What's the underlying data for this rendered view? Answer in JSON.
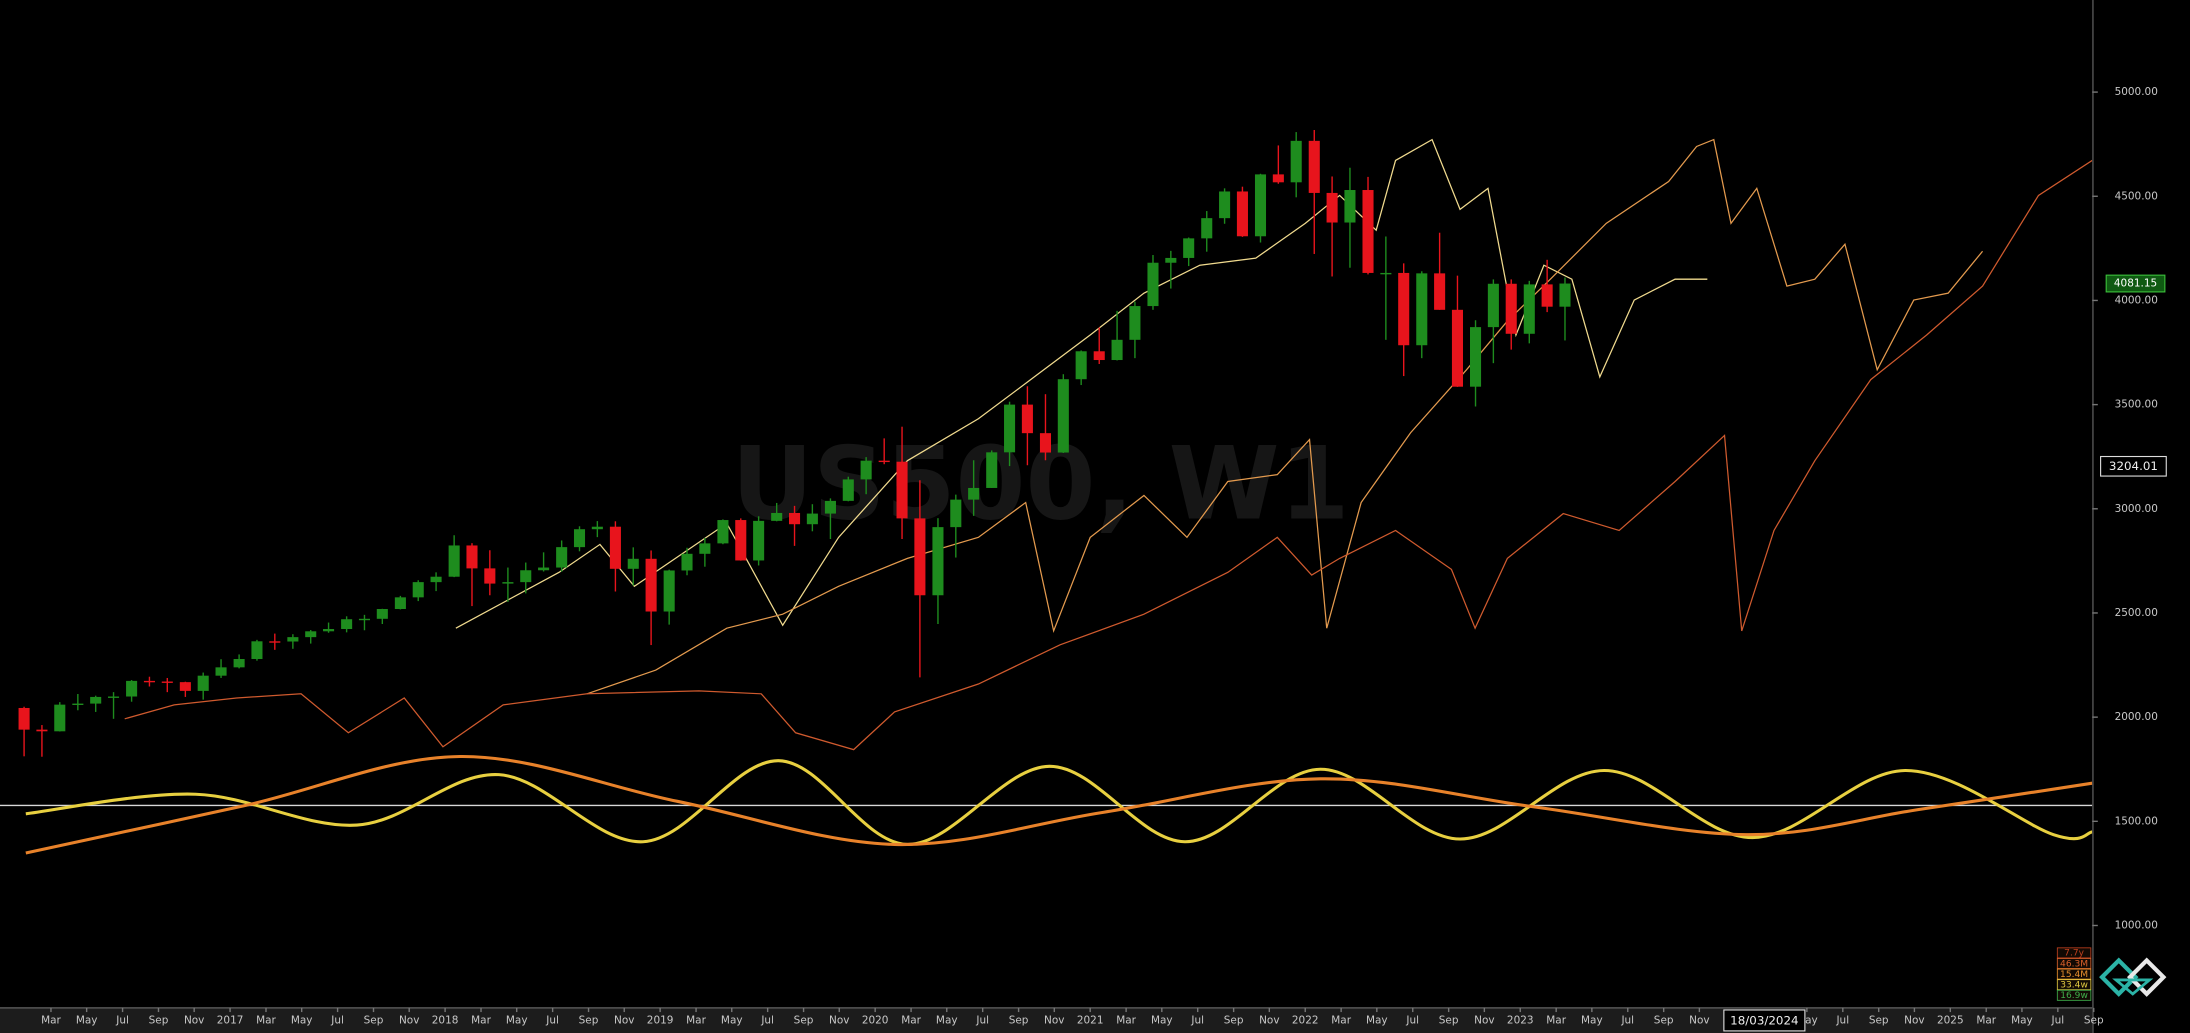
{
  "chart_data": {
    "type": "candlestick",
    "title": "US500, W1",
    "up_color": "#1e8c1e",
    "down_color": "#e8141c",
    "x": [
      2016.042,
      2016.125,
      2016.208,
      2016.292,
      2016.375,
      2016.458,
      2016.542,
      2016.625,
      2016.708,
      2016.792,
      2016.875,
      2016.958,
      2017.042,
      2017.125,
      2017.208,
      2017.292,
      2017.375,
      2017.458,
      2017.542,
      2017.625,
      2017.708,
      2017.792,
      2017.875,
      2017.958,
      2018.042,
      2018.125,
      2018.208,
      2018.292,
      2018.375,
      2018.458,
      2018.542,
      2018.625,
      2018.708,
      2018.792,
      2018.875,
      2018.958,
      2019.042,
      2019.125,
      2019.208,
      2019.292,
      2019.375,
      2019.458,
      2019.542,
      2019.625,
      2019.708,
      2019.792,
      2019.875,
      2019.958,
      2020.042,
      2020.125,
      2020.208,
      2020.292,
      2020.375,
      2020.458,
      2020.542,
      2020.625,
      2020.708,
      2020.792,
      2020.875,
      2020.958,
      2021.042,
      2021.125,
      2021.208,
      2021.292,
      2021.375,
      2021.458,
      2021.542,
      2021.625,
      2021.708,
      2021.792,
      2021.875,
      2021.958,
      2022.042,
      2022.125,
      2022.208,
      2022.292,
      2022.375,
      2022.458,
      2022.542,
      2022.625,
      2022.708,
      2022.792,
      2022.875,
      2022.958,
      2023.042,
      2023.125,
      2023.208
    ],
    "open": [
      2044,
      1940,
      1932,
      2060,
      2065,
      2097,
      2099,
      2174,
      2171,
      2168,
      2126,
      2199,
      2239,
      2279,
      2364,
      2363,
      2384,
      2412,
      2423,
      2470,
      2472,
      2519,
      2575,
      2648,
      2674,
      2824,
      2714,
      2641,
      2648,
      2705,
      2718,
      2816,
      2902,
      2914,
      2712,
      2760,
      2507,
      2704,
      2784,
      2834,
      2946,
      2752,
      2942,
      2980,
      2926,
      2977,
      3038,
      3141,
      3231,
      3226,
      2954,
      2585,
      2912,
      3044,
      3100,
      3271,
      3500,
      3363,
      3270,
      3622,
      3756,
      3714,
      3811,
      3973,
      4181,
      4204,
      4298,
      4395,
      4523,
      4308,
      4605,
      4567,
      4766,
      4516,
      4374,
      4530,
      4132,
      4132,
      3785,
      4130,
      3955,
      3586,
      3872,
      4080,
      3840,
      4077,
      3970
    ],
    "high": [
      2050,
      1962,
      2072,
      2111,
      2103,
      2120,
      2178,
      2194,
      2188,
      2170,
      2214,
      2278,
      2301,
      2371,
      2401,
      2398,
      2418,
      2454,
      2484,
      2491,
      2520,
      2582,
      2657,
      2695,
      2873,
      2835,
      2801,
      2718,
      2742,
      2791,
      2848,
      2916,
      2941,
      2940,
      2815,
      2800,
      2708,
      2813,
      2860,
      2949,
      2954,
      2964,
      3028,
      3014,
      3022,
      3050,
      3154,
      3248,
      3338,
      3394,
      3137,
      2955,
      3068,
      3233,
      3280,
      3514,
      3588,
      3550,
      3646,
      3760,
      3870,
      3950,
      3994,
      4218,
      4238,
      4302,
      4429,
      4538,
      4546,
      4608,
      4744,
      4808,
      4818,
      4595,
      4637,
      4593,
      4307,
      4178,
      4140,
      4325,
      4119,
      3905,
      4101,
      4101,
      4094,
      4195,
      4110
    ],
    "low": [
      1812,
      1810,
      1931,
      2033,
      2025,
      1992,
      2074,
      2147,
      2120,
      2097,
      2084,
      2188,
      2234,
      2271,
      2323,
      2328,
      2353,
      2405,
      2407,
      2417,
      2447,
      2517,
      2557,
      2605,
      2672,
      2533,
      2585,
      2553,
      2594,
      2699,
      2698,
      2796,
      2864,
      2603,
      2631,
      2346,
      2444,
      2681,
      2722,
      2830,
      2751,
      2728,
      2940,
      2822,
      2892,
      2855,
      3036,
      3070,
      3214,
      2855,
      2191,
      2447,
      2766,
      2966,
      3100,
      3205,
      3209,
      3233,
      3268,
      3594,
      3695,
      3712,
      3723,
      3955,
      4057,
      4165,
      4234,
      4368,
      4305,
      4278,
      4560,
      4495,
      4223,
      4115,
      4157,
      4125,
      3811,
      3637,
      3723,
      3955,
      3585,
      3491,
      3699,
      3764,
      3794,
      3944,
      3808
    ],
    "close": [
      1940,
      1932,
      2060,
      2065,
      2097,
      2099,
      2174,
      2171,
      2168,
      2126,
      2199,
      2239,
      2279,
      2364,
      2363,
      2384,
      2412,
      2423,
      2470,
      2472,
      2519,
      2575,
      2648,
      2674,
      2824,
      2714,
      2641,
      2648,
      2705,
      2718,
      2816,
      2902,
      2914,
      2712,
      2760,
      2507,
      2704,
      2784,
      2834,
      2946,
      2752,
      2942,
      2980,
      2926,
      2977,
      3038,
      3141,
      3231,
      3226,
      2954,
      2585,
      2912,
      3044,
      3100,
      3271,
      3500,
      3363,
      3270,
      3622,
      3756,
      3714,
      3811,
      3973,
      4181,
      4204,
      4298,
      4395,
      4523,
      4308,
      4605,
      4567,
      4766,
      4516,
      4374,
      4530,
      4132,
      4132,
      3785,
      4130,
      3955,
      3586,
      3872,
      4080,
      3840,
      4077,
      3970,
      4081.15
    ],
    "overlays": [
      {
        "color": "#f0da8e",
        "x": [
          2018.05,
          2018.53,
          2018.72,
          2018.88,
          2019.31,
          2019.57,
          2019.83,
          2020.15,
          2020.48,
          2020.74,
          2021.0,
          2021.25,
          2021.51,
          2021.77,
          2022.0,
          2022.16,
          2022.33,
          2022.42,
          2022.59,
          2022.72,
          2022.85,
          2022.98,
          2023.11,
          2023.24,
          2023.37,
          2023.53,
          2023.72,
          2023.87
        ],
        "values": [
          2427,
          2695,
          2829,
          2628,
          2930,
          2441,
          2863,
          3231,
          3432,
          3633,
          3834,
          4035,
          4169,
          4203,
          4370,
          4504,
          4337,
          4672,
          4772,
          4437,
          4538,
          3834,
          4169,
          4102,
          3633,
          4002,
          4102,
          4102
        ]
      },
      {
        "color": "#e39a4e",
        "x": [
          2018.66,
          2018.98,
          2019.31,
          2019.57,
          2019.83,
          2020.15,
          2020.48,
          2020.7,
          2020.83,
          2021.0,
          2021.25,
          2021.45,
          2021.64,
          2021.87,
          2022.02,
          2022.1,
          2022.26,
          2022.49,
          2022.75,
          2022.94,
          2023.14,
          2023.4,
          2023.69,
          2023.82,
          2023.9,
          2023.98,
          2024.1,
          2024.24,
          2024.37,
          2024.51,
          2024.66,
          2024.83,
          2024.99,
          2025.15
        ],
        "values": [
          2112,
          2226,
          2427,
          2494,
          2628,
          2762,
          2863,
          3030,
          2414,
          2863,
          3064,
          2863,
          3131,
          3164,
          3332,
          2427,
          3030,
          3365,
          3667,
          3901,
          4102,
          4370,
          4571,
          4739,
          4772,
          4370,
          4538,
          4069,
          4102,
          4270,
          3667,
          4002,
          4035,
          4236
        ]
      },
      {
        "color": "#cf5a2e",
        "x": [
          2016.51,
          2016.74,
          2017.03,
          2017.33,
          2017.55,
          2017.81,
          2017.99,
          2018.27,
          2018.66,
          2019.18,
          2019.47,
          2019.63,
          2019.9,
          2020.09,
          2020.48,
          2020.86,
          2021.25,
          2021.64,
          2021.87,
          2022.03,
          2022.16,
          2022.42,
          2022.68,
          2022.79,
          2022.94,
          2023.2,
          2023.46,
          2023.72,
          2023.95,
          2024.03,
          2024.18,
          2024.37,
          2024.63,
          2024.89,
          2025.15,
          2025.41,
          2025.66
        ],
        "values": [
          1992,
          2059,
          2092,
          2112,
          1925,
          2092,
          1858,
          2059,
          2112,
          2126,
          2112,
          1925,
          1844,
          2025,
          2159,
          2347,
          2494,
          2695,
          2863,
          2682,
          2762,
          2896,
          2709,
          2427,
          2762,
          2977,
          2896,
          3131,
          3352,
          2414,
          2896,
          3231,
          3620,
          3834,
          4069,
          4504,
          4672
        ]
      }
    ],
    "cycles": [
      {
        "color": "#e8d040",
        "x": [
          2016.05,
          2016.84,
          2017.59,
          2018.25,
          2018.92,
          2019.55,
          2020.15,
          2020.81,
          2021.44,
          2022.07,
          2022.72,
          2023.39,
          2024.08,
          2024.79,
          2025.48,
          2025.66
        ],
        "values": [
          1536,
          1630,
          1482,
          1724,
          1402,
          1791,
          1389,
          1764,
          1402,
          1750,
          1415,
          1744,
          1422,
          1744,
          1436,
          1449
        ]
      },
      {
        "color": "#e8822a",
        "x": [
          2016.05,
          2017.07,
          2018.07,
          2019.08,
          2020.09,
          2021.06,
          2022.07,
          2023.06,
          2024.05,
          2024.85,
          2025.66
        ],
        "values": [
          1348,
          1576,
          1811,
          1596,
          1389,
          1543,
          1704,
          1570,
          1436,
          1556,
          1683
        ]
      }
    ],
    "hline": {
      "value": 1576,
      "color": "#d8d8d8"
    },
    "crosshair": {
      "x_label": "18/03/2024",
      "y": 3204.01
    },
    "cycle_labels": [
      {
        "label": "7.7y",
        "color": "#c0401e"
      },
      {
        "label": "46.3M",
        "color": "#d8602a"
      },
      {
        "label": "15.4M",
        "color": "#e8902e"
      },
      {
        "label": "33.4w",
        "color": "#e0c840"
      },
      {
        "label": "16.9w",
        "color": "#3fae4a"
      }
    ],
    "xlim": [
      2015.93,
      2025.66
    ],
    "ylim": [
      618,
      5442
    ],
    "xticks": [
      {
        "value": 2016.167,
        "label": "Mar"
      },
      {
        "value": 2016.333,
        "label": "May"
      },
      {
        "value": 2016.5,
        "label": "Jul"
      },
      {
        "value": 2016.667,
        "label": "Sep"
      },
      {
        "value": 2016.833,
        "label": "Nov"
      },
      2017,
      {
        "value": 2017.167,
        "label": "Mar"
      },
      {
        "value": 2017.333,
        "label": "May"
      },
      {
        "value": 2017.5,
        "label": "Jul"
      },
      {
        "value": 2017.667,
        "label": "Sep"
      },
      {
        "value": 2017.833,
        "label": "Nov"
      },
      2018,
      {
        "value": 2018.167,
        "label": "Mar"
      },
      {
        "value": 2018.333,
        "label": "May"
      },
      {
        "value": 2018.5,
        "label": "Jul"
      },
      {
        "value": 2018.667,
        "label": "Sep"
      },
      {
        "value": 2018.833,
        "label": "Nov"
      },
      2019,
      {
        "value": 2019.167,
        "label": "Mar"
      },
      {
        "value": 2019.333,
        "label": "May"
      },
      {
        "value": 2019.5,
        "label": "Jul"
      },
      {
        "value": 2019.667,
        "label": "Sep"
      },
      {
        "value": 2019.833,
        "label": "Nov"
      },
      2020,
      {
        "value": 2020.167,
        "label": "Mar"
      },
      {
        "value": 2020.333,
        "label": "May"
      },
      {
        "value": 2020.5,
        "label": "Jul"
      },
      {
        "value": 2020.667,
        "label": "Sep"
      },
      {
        "value": 2020.833,
        "label": "Nov"
      },
      2021,
      {
        "value": 2021.167,
        "label": "Mar"
      },
      {
        "value": 2021.333,
        "label": "May"
      },
      {
        "value": 2021.5,
        "label": "Jul"
      },
      {
        "value": 2021.667,
        "label": "Sep"
      },
      {
        "value": 2021.833,
        "label": "Nov"
      },
      2022,
      {
        "value": 2022.167,
        "label": "Mar"
      },
      {
        "value": 2022.333,
        "label": "May"
      },
      {
        "value": 2022.5,
        "label": "Jul"
      },
      {
        "value": 2022.667,
        "label": "Sep"
      },
      {
        "value": 2022.833,
        "label": "Nov"
      },
      2023,
      {
        "value": 2023.167,
        "label": "Mar"
      },
      {
        "value": 2023.333,
        "label": "May"
      },
      {
        "value": 2023.5,
        "label": "Jul"
      },
      {
        "value": 2023.667,
        "label": "Sep"
      },
      {
        "value": 2023.833,
        "label": "Nov"
      },
      {
        "value": 2024.333,
        "label": "May"
      },
      {
        "value": 2024.5,
        "label": "Jul"
      },
      {
        "value": 2024.667,
        "label": "Sep"
      },
      {
        "value": 2024.833,
        "label": "Nov"
      },
      2025,
      {
        "value": 2025.167,
        "label": "Mar"
      },
      {
        "value": 2025.333,
        "label": "May"
      },
      {
        "value": 2025.5,
        "label": "Jul"
      },
      {
        "value": 2025.667,
        "label": "Sep"
      }
    ],
    "yticks": [
      {
        "value": 1000,
        "label": "1000.00"
      },
      {
        "value": 1500,
        "label": "1500.00"
      },
      {
        "value": 2000,
        "label": "2000.00"
      },
      {
        "value": 2500,
        "label": "2500.00"
      },
      {
        "value": 3000,
        "label": "3000.00"
      },
      {
        "value": 3500,
        "label": "3500.00"
      },
      {
        "value": 4000,
        "label": "4000.00"
      },
      {
        "value": 4500,
        "label": "4500.00"
      },
      {
        "value": 5000,
        "label": "5000.00"
      }
    ]
  }
}
